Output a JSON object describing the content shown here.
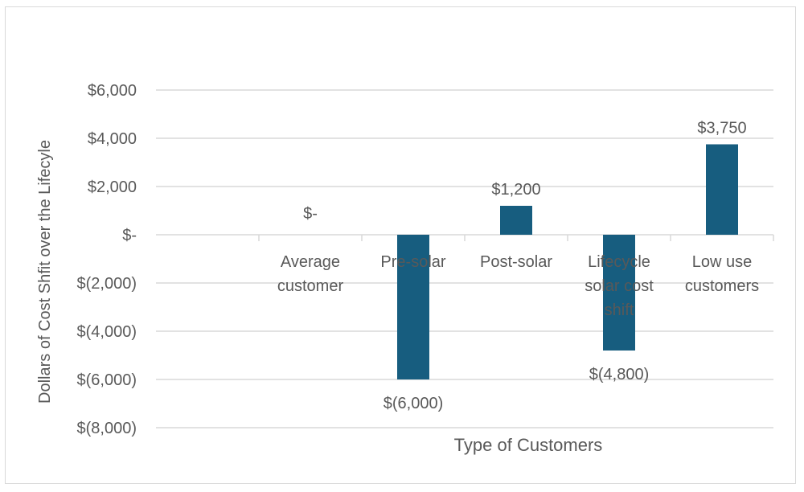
{
  "chart_data": {
    "type": "bar",
    "categories": [
      [
        "Average",
        "customer"
      ],
      [
        "Pre-solar"
      ],
      [
        "Post-solar"
      ],
      [
        "Lifecycle",
        "solar cost",
        "shift"
      ],
      [
        "Low use",
        "customers"
      ]
    ],
    "values": [
      0,
      -6000,
      1200,
      -4800,
      3750
    ],
    "data_labels": [
      "$-",
      "$(6,000)",
      "$1,200",
      "$(4,800)",
      "$3,750"
    ],
    "xlabel": "Type of Customers",
    "ylabel": "Dollars of Cost Shfit over the Lifecyle",
    "ylim": [
      -8000,
      6000
    ],
    "yticks": [
      6000,
      4000,
      2000,
      0,
      -2000,
      -4000,
      -6000,
      -8000
    ],
    "ytick_labels": [
      "$6,000",
      "$4,000",
      "$2,000",
      "$-",
      "$(2,000)",
      "$(4,000)",
      "$(6,000)",
      "$(8,000)"
    ],
    "grid": true,
    "bar_color": "#175d7f",
    "grid_color": "#d9d9d9",
    "text_color": "#595959"
  }
}
